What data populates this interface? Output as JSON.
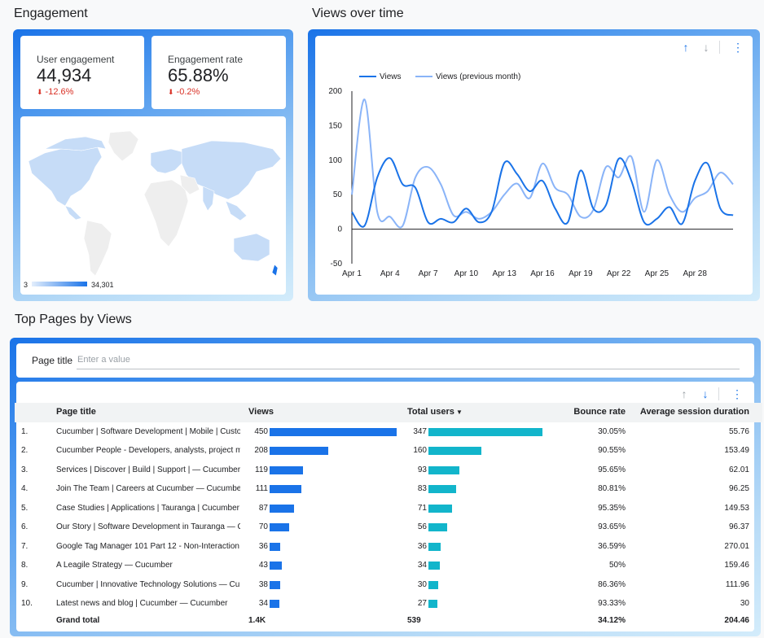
{
  "engagement": {
    "title": "Engagement",
    "kpis": [
      {
        "label": "User engagement",
        "value": "44,934",
        "delta": "-12.6%"
      },
      {
        "label": "Engagement rate",
        "value": "65.88%",
        "delta": "-0.2%"
      }
    ],
    "map": {
      "legend_min": "3",
      "legend_max": "34,301"
    }
  },
  "views_over_time": {
    "title": "Views over time",
    "colors": {
      "views": "#1a73e8",
      "previous": "#8ab4f8"
    }
  },
  "chart_data": {
    "type": "line",
    "title": "Views over time",
    "xlabel": "",
    "ylabel": "",
    "ylim": [
      -50,
      200
    ],
    "yticks": [
      200,
      150,
      100,
      50,
      0,
      -50
    ],
    "x": [
      1,
      2,
      3,
      4,
      5,
      6,
      7,
      8,
      9,
      10,
      11,
      12,
      13,
      14,
      15,
      16,
      17,
      18,
      19,
      20,
      21,
      22,
      23,
      24,
      25,
      26,
      27,
      28,
      29,
      30,
      31
    ],
    "xtick_labels": [
      {
        "day": 1,
        "label": "Apr 1"
      },
      {
        "day": 4,
        "label": "Apr 4"
      },
      {
        "day": 7,
        "label": "Apr 7"
      },
      {
        "day": 10,
        "label": "Apr 10"
      },
      {
        "day": 13,
        "label": "Apr 13"
      },
      {
        "day": 16,
        "label": "Apr 16"
      },
      {
        "day": 19,
        "label": "Apr 19"
      },
      {
        "day": 22,
        "label": "Apr 22"
      },
      {
        "day": 25,
        "label": "Apr 25"
      },
      {
        "day": 28,
        "label": "Apr 28"
      }
    ],
    "series": [
      {
        "name": "Views",
        "values": [
          25,
          5,
          75,
          103,
          65,
          60,
          10,
          15,
          10,
          30,
          10,
          25,
          96,
          80,
          55,
          70,
          30,
          10,
          85,
          30,
          35,
          102,
          70,
          10,
          15,
          32,
          8,
          70,
          95,
          30,
          20
        ]
      },
      {
        "name": "Views (previous month)",
        "values": [
          50,
          188,
          25,
          18,
          5,
          75,
          90,
          65,
          20,
          25,
          15,
          25,
          50,
          66,
          45,
          95,
          60,
          50,
          18,
          28,
          90,
          75,
          105,
          25,
          100,
          50,
          25,
          45,
          55,
          82,
          65
        ]
      }
    ],
    "legend": "top-left"
  },
  "top_pages": {
    "title": "Top Pages by Views",
    "filter": {
      "label": "Page title",
      "placeholder": "Enter a value"
    },
    "columns": [
      "Page title",
      "Views",
      "Total users",
      "Bounce rate",
      "Average session duration"
    ],
    "rows": [
      {
        "rank": "1.",
        "title": "Cucumber | Software Development | Mobile | Custo...",
        "views": "450",
        "views_num": 450,
        "users": "347",
        "users_num": 347,
        "bounce": "30.05%",
        "duration": "55.76"
      },
      {
        "rank": "2.",
        "title": "Cucumber People - Developers, analysts, project m...",
        "views": "208",
        "views_num": 208,
        "users": "160",
        "users_num": 160,
        "bounce": "90.55%",
        "duration": "153.49"
      },
      {
        "rank": "3.",
        "title": "Services | Discover | Build | Support | — Cucumber",
        "views": "119",
        "views_num": 119,
        "users": "93",
        "users_num": 93,
        "bounce": "95.65%",
        "duration": "62.01"
      },
      {
        "rank": "4.",
        "title": "Join The Team | Careers at Cucumber — Cucumber",
        "views": "111",
        "views_num": 111,
        "users": "83",
        "users_num": 83,
        "bounce": "80.81%",
        "duration": "96.25"
      },
      {
        "rank": "5.",
        "title": "Case Studies | Applications | Tauranga | Cucumber ...",
        "views": "87",
        "views_num": 87,
        "users": "71",
        "users_num": 71,
        "bounce": "95.35%",
        "duration": "149.53"
      },
      {
        "rank": "6.",
        "title": "Our Story | Software Development in Tauranga — C...",
        "views": "70",
        "views_num": 70,
        "users": "56",
        "users_num": 56,
        "bounce": "93.65%",
        "duration": "96.37"
      },
      {
        "rank": "7.",
        "title": "Google Tag Manager 101 Part 12 - Non-Interaction ...",
        "views": "36",
        "views_num": 36,
        "users": "36",
        "users_num": 36,
        "bounce": "36.59%",
        "duration": "270.01"
      },
      {
        "rank": "8.",
        "title": "A Leagile Strategy — Cucumber",
        "views": "43",
        "views_num": 43,
        "users": "34",
        "users_num": 34,
        "bounce": "50%",
        "duration": "159.46"
      },
      {
        "rank": "9.",
        "title": "Cucumber | Innovative Technology Solutions — Cu...",
        "views": "38",
        "views_num": 38,
        "users": "30",
        "users_num": 30,
        "bounce": "86.36%",
        "duration": "111.96"
      },
      {
        "rank": "10.",
        "title": "Latest news and blog | Cucumber — Cucumber",
        "views": "34",
        "views_num": 34,
        "users": "27",
        "users_num": 27,
        "bounce": "93.33%",
        "duration": "30"
      }
    ],
    "grand_total": {
      "label": "Grand total",
      "views": "1.4K",
      "users": "539",
      "bounce": "34.12%",
      "duration": "204.46"
    },
    "colors": {
      "views_bar": "#1a73e8",
      "users_bar": "#12b5cb"
    }
  }
}
